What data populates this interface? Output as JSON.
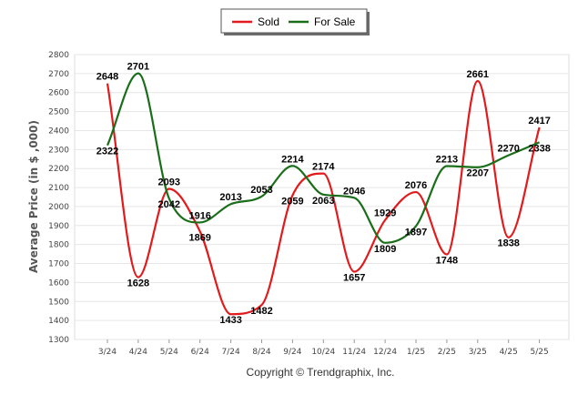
{
  "chart_data": {
    "type": "line",
    "title": "",
    "xlabel": "",
    "ylabel": "Average Price (in $ ,000)",
    "categories": [
      "3/24",
      "4/24",
      "5/24",
      "6/24",
      "7/24",
      "8/24",
      "9/24",
      "10/24",
      "11/24",
      "12/24",
      "1/25",
      "2/25",
      "3/25",
      "4/25",
      "5/25"
    ],
    "ylim": [
      1300,
      2800
    ],
    "yticks": [
      1300,
      1400,
      1500,
      1600,
      1700,
      1800,
      1900,
      2000,
      2100,
      2200,
      2300,
      2400,
      2500,
      2600,
      2700,
      2800
    ],
    "grid": true,
    "legend_position": "top-center",
    "series": [
      {
        "name": "Sold",
        "color": "#e31a1c",
        "values": [
          2648,
          1628,
          2093,
          1869,
          1433,
          1482,
          2059,
          2174,
          1657,
          1929,
          2076,
          1748,
          2661,
          1838,
          2417
        ]
      },
      {
        "name": "For Sale",
        "color": "#1a6e1a",
        "values": [
          2322,
          2701,
          2042,
          1916,
          2013,
          2053,
          2214,
          2063,
          2046,
          1809,
          1897,
          2213,
          2207,
          2270,
          2338
        ]
      }
    ],
    "credit": "Copyright © Trendgraphix, Inc."
  }
}
